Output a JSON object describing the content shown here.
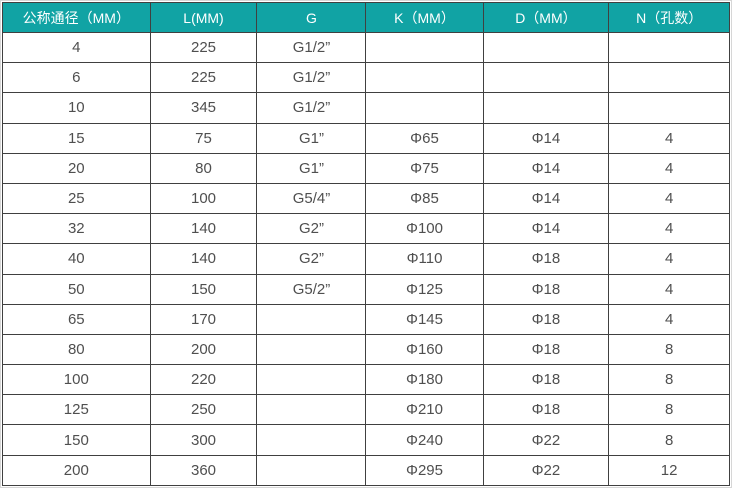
{
  "colors": {
    "header_bg": "#11a3a4",
    "header_text": "#ffffff",
    "grid_border": "#404040",
    "cell_text": "#4f4f4f",
    "outer_frame": "#d6d6d6"
  },
  "chart_data": {
    "type": "table",
    "title": "",
    "columns": [
      "公称通径（MM）",
      "L(MM)",
      "G",
      "K（MM）",
      "D（MM）",
      "N（孔数）"
    ],
    "rows": [
      [
        "4",
        "225",
        "G1/2”",
        "",
        "",
        ""
      ],
      [
        "6",
        "225",
        "G1/2”",
        "",
        "",
        ""
      ],
      [
        "10",
        "345",
        "G1/2”",
        "",
        "",
        ""
      ],
      [
        "15",
        "75",
        "G1”",
        "Φ65",
        "Φ14",
        "4"
      ],
      [
        "20",
        "80",
        "G1”",
        "Φ75",
        "Φ14",
        "4"
      ],
      [
        "25",
        "100",
        "G5/4”",
        "Φ85",
        "Φ14",
        "4"
      ],
      [
        "32",
        "140",
        "G2”",
        "Φ100",
        "Φ14",
        "4"
      ],
      [
        "40",
        "140",
        "G2”",
        "Φ110",
        "Φ18",
        "4"
      ],
      [
        "50",
        "150",
        "G5/2”",
        "Φ125",
        "Φ18",
        "4"
      ],
      [
        "65",
        "170",
        "",
        "Φ145",
        "Φ18",
        "4"
      ],
      [
        "80",
        "200",
        "",
        "Φ160",
        "Φ18",
        "8"
      ],
      [
        "100",
        "220",
        "",
        "Φ180",
        "Φ18",
        "8"
      ],
      [
        "125",
        "250",
        "",
        "Φ210",
        "Φ18",
        "8"
      ],
      [
        "150",
        "300",
        "",
        "Φ240",
        "Φ22",
        "8"
      ],
      [
        "200",
        "360",
        "",
        "Φ295",
        "Φ22",
        "12"
      ]
    ],
    "column_width_percents": [
      20.3,
      14.7,
      15.0,
      16.1,
      17.3,
      16.6
    ],
    "layout_hints": {
      "header_row": true,
      "grid": true,
      "cell_alignment": "center"
    }
  }
}
